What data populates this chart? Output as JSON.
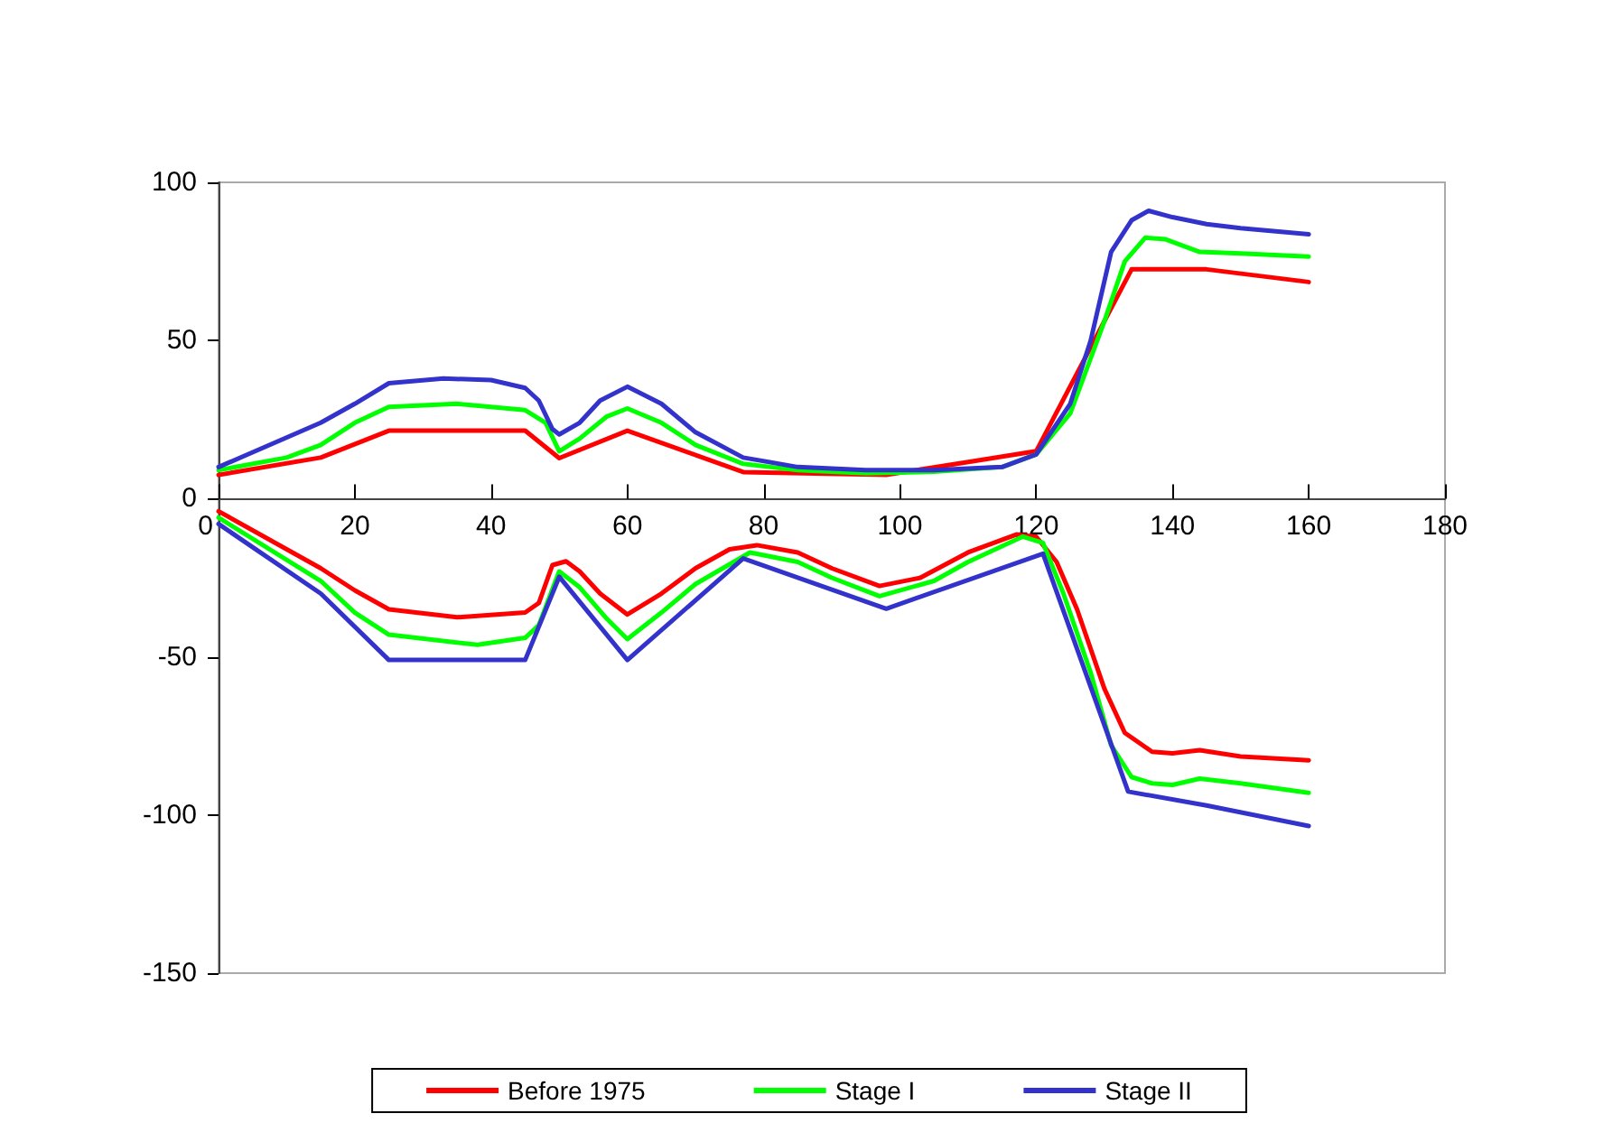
{
  "chart_data": {
    "type": "line",
    "marker": "none",
    "line_style": "solid",
    "grid": false,
    "legend": "bottom",
    "xlim": [
      0,
      180
    ],
    "xticks": [
      0,
      20,
      40,
      60,
      80,
      100,
      120,
      140,
      160,
      180
    ],
    "ylim": [
      -150,
      100
    ],
    "yticks": [
      -150,
      -100,
      -50,
      0,
      50,
      100
    ],
    "series": [
      {
        "name": "Before 1975",
        "color": "#ff0000",
        "x": [
          0,
          15,
          25,
          45,
          50,
          60,
          77,
          98,
          120,
          134,
          145,
          160
        ],
        "values": [
          7.5,
          13,
          21.5,
          21.5,
          12.8,
          21.5,
          8.4,
          7.5,
          15,
          72.5,
          72.5,
          68.5
        ]
      },
      {
        "name": "Stage I",
        "color": "#00ff00",
        "x": [
          0,
          10,
          15,
          20,
          25,
          35,
          45,
          48,
          50,
          53,
          57,
          60,
          65,
          70,
          77,
          85,
          95,
          105,
          115,
          120,
          125,
          130,
          133,
          136,
          139,
          144,
          150,
          160
        ],
        "values": [
          9,
          13,
          17,
          24,
          29,
          30,
          28,
          24,
          15,
          19,
          26,
          28.5,
          24,
          17,
          11,
          9,
          8,
          8.5,
          10,
          14,
          27,
          56,
          75,
          82.5,
          82,
          78,
          77.5,
          76.5
        ]
      },
      {
        "name": "Stage II",
        "color": "#3333cc",
        "x": [
          0,
          15,
          20,
          25,
          33,
          40,
          45,
          47,
          49,
          50,
          53,
          56,
          60,
          65,
          70,
          77,
          85,
          95,
          105,
          115,
          120,
          125,
          128,
          131,
          134,
          136.5,
          140,
          145,
          150,
          160
        ],
        "values": [
          10,
          24,
          30,
          36.5,
          38,
          37.5,
          35,
          31,
          22,
          20.3,
          24,
          31,
          35.4,
          30,
          21,
          13,
          10,
          9,
          9,
          10,
          14,
          30,
          50,
          78,
          88,
          91,
          89,
          86.8,
          85.5,
          83.6
        ]
      },
      {
        "color": "#ff0000",
        "x": [
          0,
          15,
          20,
          25,
          35,
          45,
          47,
          49,
          51,
          53,
          56,
          60,
          65,
          70,
          75,
          79,
          85,
          90,
          97,
          103,
          110,
          117,
          120,
          123,
          126,
          130,
          133,
          137,
          140,
          144,
          150,
          160
        ],
        "values": [
          -4,
          -22,
          -29,
          -35,
          -37.5,
          -36,
          -33,
          -21,
          -19.8,
          -23,
          -30,
          -36.6,
          -30,
          -22,
          -16,
          -14.7,
          -17,
          -22,
          -27.6,
          -25,
          -17,
          -11.4,
          -12,
          -20,
          -35,
          -60,
          -74,
          -80,
          -80.5,
          -79.5,
          -81.5,
          -82.7
        ]
      },
      {
        "color": "#00ff00",
        "x": [
          0,
          15,
          20,
          25,
          38,
          45,
          47,
          50,
          53,
          57,
          60,
          65,
          70,
          78,
          85,
          90,
          97,
          105,
          110,
          118,
          121,
          124,
          128,
          131,
          134,
          137,
          140,
          144,
          150,
          160
        ],
        "values": [
          -6,
          -26,
          -36,
          -43,
          -46.2,
          -44,
          -40,
          -23,
          -28,
          -38,
          -44.4,
          -36,
          -27,
          -17,
          -20,
          -25,
          -30.8,
          -26,
          -20,
          -12,
          -14,
          -30,
          -55,
          -78,
          -88,
          -90,
          -90.5,
          -88.5,
          -90,
          -93
        ]
      },
      {
        "color": "#3333cc",
        "x": [
          0,
          15,
          25,
          45,
          50,
          60,
          77,
          98,
          121,
          133.5,
          145,
          160
        ],
        "values": [
          -8,
          -30,
          -51,
          -51,
          -24.7,
          -51,
          -18.9,
          -34.8,
          -17.4,
          -92.6,
          -97,
          -103.5
        ]
      }
    ]
  }
}
